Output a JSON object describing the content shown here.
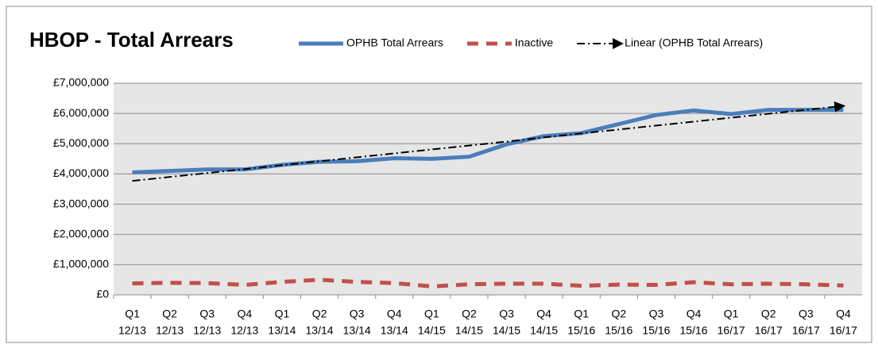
{
  "chart_data": {
    "type": "line",
    "title": "HBOP - Total Arrears",
    "categories": [
      [
        "Q1",
        "12/13"
      ],
      [
        "Q2",
        "12/13"
      ],
      [
        "Q3",
        "12/13"
      ],
      [
        "Q4",
        "12/13"
      ],
      [
        "Q1",
        "13/14"
      ],
      [
        "Q2",
        "13/14"
      ],
      [
        "Q3",
        "13/14"
      ],
      [
        "Q4",
        "13/14"
      ],
      [
        "Q1",
        "14/15"
      ],
      [
        "Q2",
        "14/15"
      ],
      [
        "Q3",
        "14/15"
      ],
      [
        "Q4",
        "14/15"
      ],
      [
        "Q1",
        "15/16"
      ],
      [
        "Q2",
        "15/16"
      ],
      [
        "Q3",
        "15/16"
      ],
      [
        "Q4",
        "15/16"
      ],
      [
        "Q1",
        "16/17"
      ],
      [
        "Q2",
        "16/17"
      ],
      [
        "Q3",
        "16/17"
      ],
      [
        "Q4",
        "16/17"
      ]
    ],
    "series": [
      {
        "name": "OPHB Total Arrears",
        "color": "#4a7ebb",
        "line_style": "solid",
        "values": [
          4050000,
          4100000,
          4150000,
          4150000,
          4300000,
          4400000,
          4420000,
          4520000,
          4500000,
          4570000,
          4980000,
          5250000,
          5350000,
          5650000,
          5950000,
          6100000,
          5980000,
          6120000,
          6120000,
          6120000
        ]
      },
      {
        "name": "Inactive",
        "color": "#c0504d",
        "line_style": "dashed",
        "values": [
          380000,
          400000,
          390000,
          330000,
          430000,
          500000,
          430000,
          390000,
          280000,
          350000,
          370000,
          370000,
          300000,
          340000,
          330000,
          420000,
          350000,
          370000,
          350000,
          310000
        ]
      },
      {
        "name": "Linear (OPHB Total Arrears)",
        "color": "#000000",
        "line_style": "dashdot",
        "values": [
          3770000,
          3900000,
          4030000,
          4160000,
          4290000,
          4420000,
          4550000,
          4680000,
          4810000,
          4940000,
          5070000,
          5210000,
          5340000,
          5470000,
          5600000,
          5730000,
          5860000,
          5990000,
          6120000,
          6250000
        ]
      }
    ],
    "ylim": [
      0,
      7000000
    ],
    "yticks": [
      {
        "value": 0,
        "label": "£0"
      },
      {
        "value": 1000000,
        "label": "£1,000,000"
      },
      {
        "value": 2000000,
        "label": "£2,000,000"
      },
      {
        "value": 3000000,
        "label": "£3,000,000"
      },
      {
        "value": 4000000,
        "label": "£4,000,000"
      },
      {
        "value": 5000000,
        "label": "£5,000,000"
      },
      {
        "value": 6000000,
        "label": "£6,000,000"
      },
      {
        "value": 7000000,
        "label": "£7,000,000"
      }
    ],
    "grid": true,
    "legend": "top"
  }
}
